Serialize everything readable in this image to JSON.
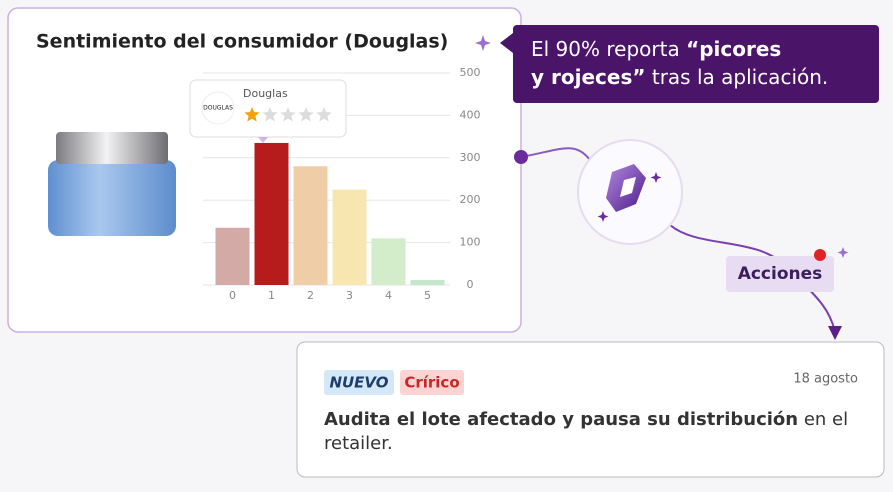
{
  "card": {
    "title": "Sentimiento del consumidor (Douglas)",
    "tooltip": {
      "logo": "DOUGLAS",
      "brand": "Douglas",
      "rating": 1,
      "stars_max": 5
    }
  },
  "chart_data": {
    "type": "bar",
    "categories": [
      "0",
      "1",
      "2",
      "3",
      "4",
      "5"
    ],
    "values": [
      135,
      335,
      280,
      225,
      110,
      12
    ],
    "colors": [
      "#d4aaa7",
      "#b71c1c",
      "#efcda6",
      "#f7e6b0",
      "#d3ecc9",
      "#c4e6cb"
    ],
    "ylim": [
      0,
      500
    ],
    "yticks": [
      0,
      100,
      200,
      300,
      400,
      500
    ],
    "grid": true
  },
  "callout": {
    "text": "El 90% reporta ",
    "bold": "“picores y rojeces”",
    "rest": " tras la aplicación."
  },
  "action_label": "Acciones",
  "notification": {
    "tags": [
      "NUEVO",
      "Crírico"
    ],
    "date": "18 agosto",
    "text_bold": "Audita el lote afectado y pausa su distribución",
    "text": " en el retailer."
  }
}
